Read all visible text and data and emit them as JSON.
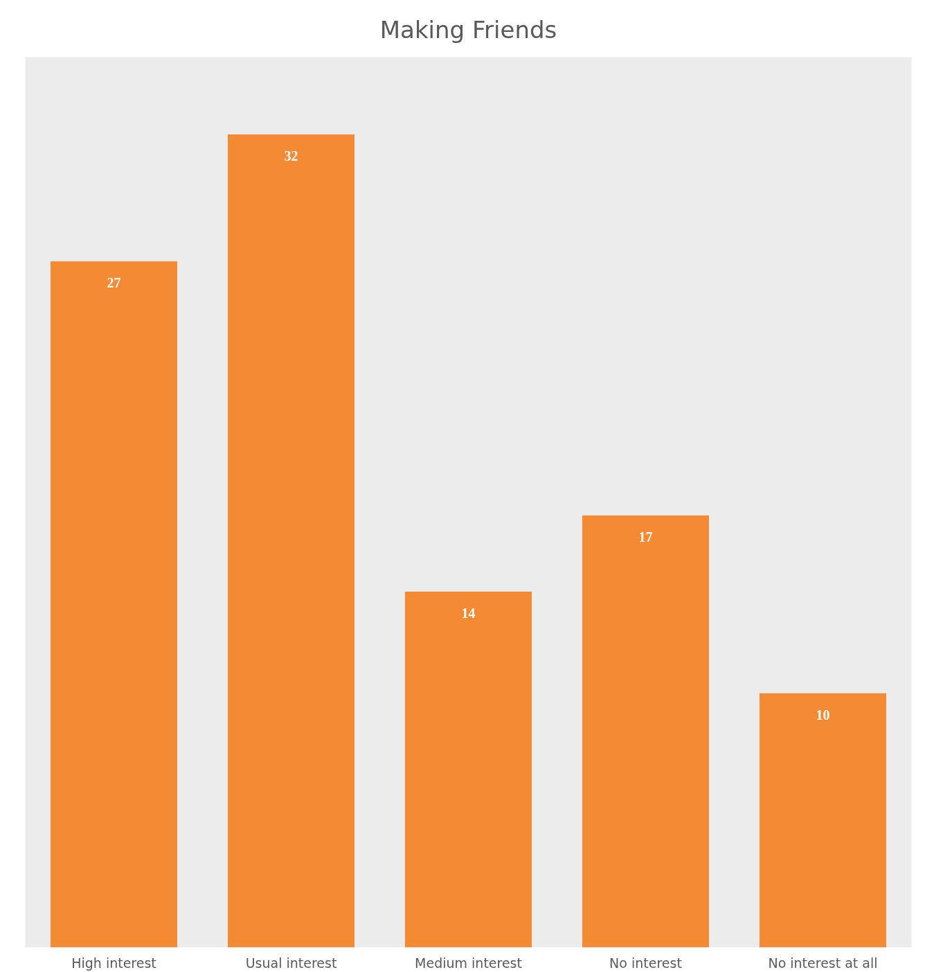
{
  "chart_data": {
    "type": "bar",
    "title": "Making Friends",
    "categories": [
      "High interest",
      "Usual interest",
      "Medium interest",
      "No interest",
      "No interest at all"
    ],
    "values": [
      27,
      32,
      14,
      17,
      10
    ],
    "color": "#f58a35",
    "data_labels": true,
    "tick_labels": "x",
    "grid": false
  }
}
